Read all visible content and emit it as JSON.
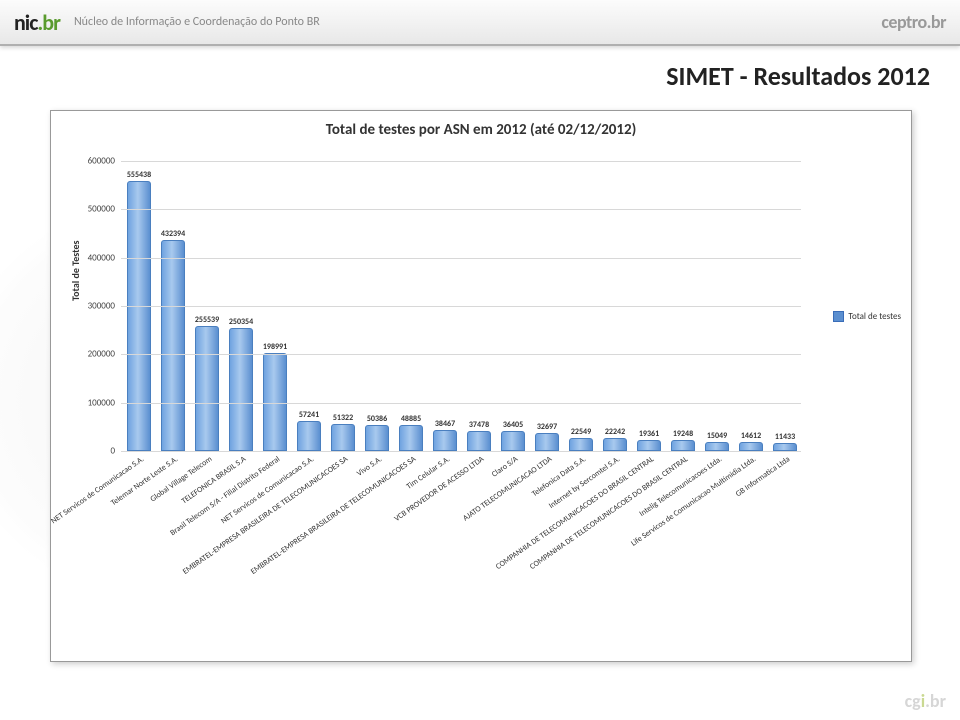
{
  "header": {
    "logo_main": "nic",
    "logo_suffix": ".br",
    "subtitle": "Núcleo de Informação e Coordenação do Ponto BR",
    "logo_right_main": "ceptro",
    "logo_right_suffix": ".br"
  },
  "slide_title": "SIMET - Resultados 2012",
  "chart": {
    "type": "bar",
    "title": "Total de testes por ASN em 2012 (até 02/12/2012)",
    "yaxis_label": "Total de Testes",
    "ylim": [
      0,
      600000
    ],
    "ytick_step": 100000,
    "yticks": [
      0,
      100000,
      200000,
      300000,
      400000,
      500000,
      600000
    ],
    "bar_color": "#5b8fd0",
    "grid_color": "#d8d8d8",
    "background_color": "#ffffff",
    "legend_label": "Total de testes",
    "title_fontsize": 15,
    "label_fontsize": 9,
    "categories": [
      "NET Servicos de Comunicacao S.A.",
      "Telemar Norte Leste S.A.",
      "Global Village Telecom",
      "TELEFONICA BRASIL S.A",
      "Brasil Telecom S/A - Filial Distrito Federal",
      "NET Servicos de Comunicacao S.A.",
      "EMBRATEL-EMPRESA BRASILEIRA DE TELECOMUNICACOES SA",
      "Vivo S.A.",
      "EMBRATEL-EMPRESA BRASILEIRA DE TELECOMUNICACOES SA",
      "Tim Celular S.A.",
      "VCB PROVEDOR DE ACESSO LTDA",
      "Claro S/A",
      "AJATO TELECOMUNICACAO LTDA",
      "Telefonica Data S.A.",
      "Internet by Sercomtel S.A.",
      "COMPANHIA DE TELECOMUNICACOES DO BRASIL CENTRAL",
      "COMPANHIA DE TELECOMUNICACOES DO BRASIL CENTRAL",
      "Intelig Telecomunicacoes Ltda.",
      "Life Servicos de Comunicacao Multimidia Ltda.",
      "GB Informatica Ltda"
    ],
    "values": [
      555438,
      432394,
      255539,
      250354,
      198991,
      57241,
      51322,
      50386,
      48885,
      38467,
      37478,
      36405,
      32697,
      22549,
      22242,
      19361,
      19248,
      15049,
      14612,
      11433
    ]
  },
  "footer": {
    "logo_main": "cg",
    "logo_accent": "i",
    "logo_suffix": ".br"
  }
}
